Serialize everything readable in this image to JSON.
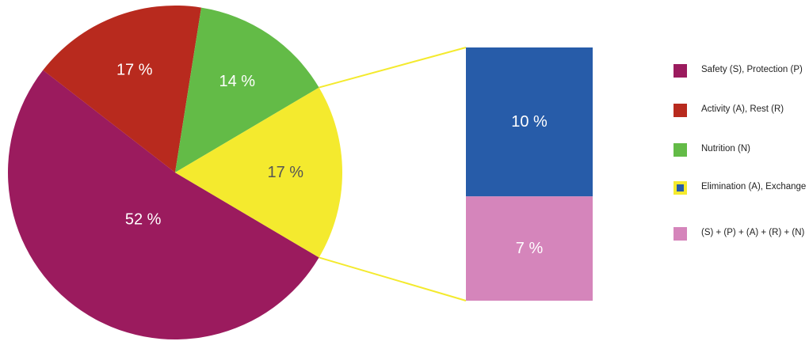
{
  "chart_data": [
    {
      "type": "pie",
      "slices": [
        {
          "label": "Safety (S), Protection (P)",
          "value": 52,
          "value_label": "52 %",
          "color": "#9b1b5e"
        },
        {
          "label": "Activity (A), Rest (R)",
          "value": 17,
          "value_label": "17 %",
          "color": "#b82a1e"
        },
        {
          "label": "Nutrition (N)",
          "value": 14,
          "value_label": "14 %",
          "color": "#63bb47"
        },
        {
          "label": "Elimination (A), Exchange",
          "value": 17,
          "value_label": "17 %",
          "color": "#f4ea2e"
        }
      ]
    },
    {
      "type": "bar",
      "stacked": true,
      "segments": [
        {
          "value": 10,
          "value_label": "10 %",
          "color": "#275ca9"
        },
        {
          "value": 7,
          "value_label": "7 %",
          "color": "#d585bb"
        }
      ]
    }
  ],
  "connector_color": "#f4ea2e",
  "legend": [
    {
      "label": "Safety (S), Protection (P)",
      "color": "#9b1b5e"
    },
    {
      "label": "Activity (A), Rest (R)",
      "color": "#b82a1e"
    },
    {
      "label": "Nutrition (N)",
      "color": "#63bb47"
    },
    {
      "label": "Elimination (A), Exchange",
      "color": "#f4ea2e",
      "inner_color": "#275ca9"
    },
    {
      "label": "(S) + (P) + (A) + (R) + (N)",
      "color": "#d585bb"
    }
  ]
}
